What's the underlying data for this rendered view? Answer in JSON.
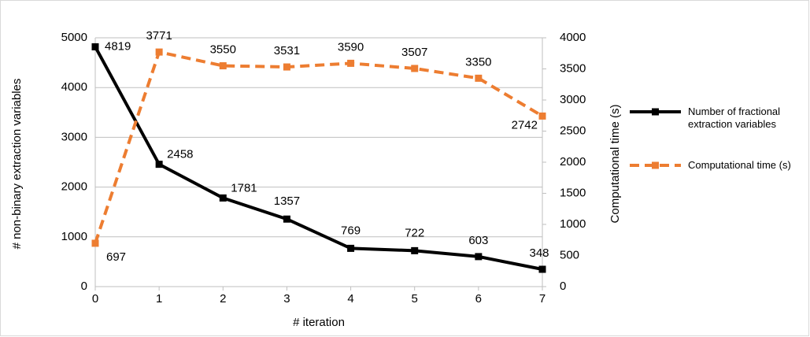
{
  "chart_data": {
    "type": "line",
    "x": [
      0,
      1,
      2,
      3,
      4,
      5,
      6,
      7
    ],
    "xlim": [
      0,
      7
    ],
    "xticks": [
      0,
      1,
      2,
      3,
      4,
      5,
      6,
      7
    ],
    "x_label": "# iteration",
    "y_label": "# non-binary extraction variables",
    "y2_label": "Computational time (s)",
    "ylim": [
      0,
      5000
    ],
    "yticks": [
      0,
      1000,
      2000,
      3000,
      4000,
      5000
    ],
    "y2lim": [
      0,
      4000
    ],
    "y2ticks": [
      0,
      500,
      1000,
      1500,
      2000,
      2500,
      3000,
      3500,
      4000
    ],
    "grid": true,
    "legend": "right",
    "series": [
      {
        "name": "Number of fractional extraction variables",
        "color": "#000000",
        "dash": false,
        "values": [
          4819,
          2458,
          1781,
          1357,
          769,
          722,
          603,
          348
        ]
      },
      {
        "name": "Computational time (s)",
        "color": "#ed7d31",
        "dash": true,
        "axis": "y2",
        "values": [
          697,
          3771,
          3550,
          3531,
          3590,
          3507,
          3350,
          2742
        ]
      }
    ]
  }
}
